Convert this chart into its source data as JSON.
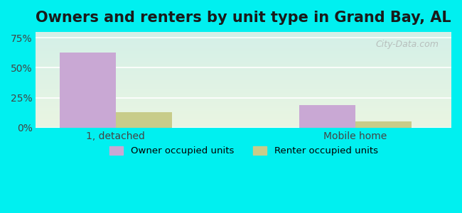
{
  "title": "Owners and renters by unit type in Grand Bay, AL",
  "categories": [
    "1, detached",
    "Mobile home"
  ],
  "owner_values": [
    63,
    19
  ],
  "renter_values": [
    13,
    5
  ],
  "owner_color": "#c9a8d4",
  "renter_color": "#c8cc8a",
  "owner_label": "Owner occupied units",
  "renter_label": "Renter occupied units",
  "yticks": [
    0,
    25,
    50,
    75
  ],
  "ytick_labels": [
    "0%",
    "25%",
    "50%",
    "75%"
  ],
  "ylim": [
    0,
    80
  ],
  "background_top": "#e8f5e0",
  "background_bottom": "#d0f5f0",
  "bar_width": 0.35,
  "title_fontsize": 15,
  "watermark": "City-Data.com",
  "fig_bg_color": "#00f0f0"
}
